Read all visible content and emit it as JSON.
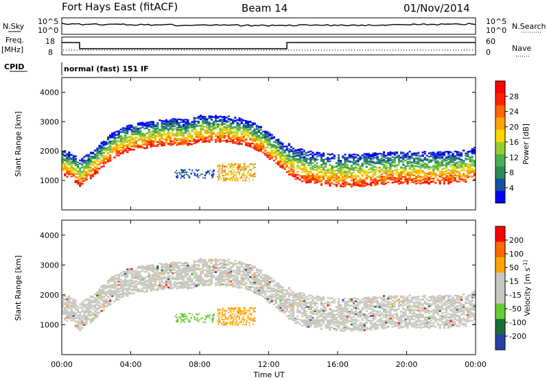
{
  "header": {
    "title": "Fort Hays East (fitACF)",
    "beam": "Beam 14",
    "date": "01/Nov/2014"
  },
  "top_panels": {
    "nsky_label": "N.Sky",
    "nsearch_label": "N.Search",
    "freq_label": "Freq.",
    "freq_unit": "[MHz]",
    "nave_label": "Nave",
    "cpid_label": "CPID",
    "mode_text": "normal (fast) 151 IF",
    "noise_ticks_left": [
      "10^5",
      "10^0"
    ],
    "noise_ticks_right": [
      "10^5",
      "10^0"
    ],
    "freq_ticks": [
      "18",
      "8"
    ],
    "nave_ticks": [
      "60",
      "0"
    ]
  },
  "colors": {
    "power_scale": [
      "#0000ff",
      "#1a4fa0",
      "#2e8b57",
      "#4caf50",
      "#9acd32",
      "#ffd700",
      "#ffa500",
      "#ff6600",
      "#ff2200",
      "#ff0000"
    ],
    "velocity_scale": [
      "#2b3fa8",
      "#1e6e3a",
      "#66cc33",
      "#c8c8c0",
      "#c8c8c0",
      "#ffa500",
      "#ff6a00",
      "#ff0000"
    ],
    "ground_scatter": "#c8c8c0"
  },
  "chart_data": [
    {
      "type": "heatmap",
      "name": "power-panel",
      "ylabel": "Slant Range [km]",
      "ylim": [
        0,
        4500
      ],
      "yticks": [
        1000,
        2000,
        3000,
        4000
      ],
      "xlim": [
        "00:00",
        "24:00"
      ],
      "colorbar": {
        "label": "Power [dB]",
        "ticks": [
          "28",
          "24",
          "20",
          "16",
          "12",
          "8",
          "4"
        ],
        "range": [
          0,
          32
        ]
      },
      "x": [
        0,
        0.5,
        1,
        1.5,
        2,
        2.5,
        3,
        3.5,
        4,
        4.5,
        5,
        5.5,
        6,
        6.5,
        7,
        7.5,
        8,
        8.5,
        9,
        9.5,
        10,
        10.5,
        11,
        11.5,
        12,
        12.5,
        13,
        13.5,
        14,
        15,
        16,
        17,
        18,
        19,
        20,
        21,
        22,
        23,
        24
      ],
      "band_center": [
        1500,
        1400,
        1150,
        1350,
        1600,
        1900,
        2100,
        2250,
        2350,
        2400,
        2450,
        2500,
        2500,
        2550,
        2500,
        2550,
        2650,
        2650,
        2650,
        2650,
        2600,
        2550,
        2450,
        2300,
        2050,
        1850,
        1600,
        1450,
        1350,
        1250,
        1200,
        1200,
        1250,
        1300,
        1300,
        1300,
        1300,
        1300,
        1450
      ]
    },
    {
      "type": "heatmap",
      "name": "velocity-panel",
      "ylabel": "Slant Range [km]",
      "ylim": [
        0,
        4500
      ],
      "yticks": [
        1000,
        2000,
        3000,
        4000
      ],
      "xlim": [
        "00:00",
        "24:00"
      ],
      "colorbar": {
        "label": "Velocity [m s^-1]",
        "ticks": [
          "200",
          "100",
          "50",
          "15",
          "-15",
          "-50",
          "-100",
          "-200"
        ],
        "range": [
          -250,
          250
        ]
      }
    }
  ],
  "xaxis": {
    "label": "Time UT",
    "ticks": [
      "00:00",
      "04:00",
      "08:00",
      "12:00",
      "16:00",
      "20:00",
      "00:00"
    ]
  }
}
